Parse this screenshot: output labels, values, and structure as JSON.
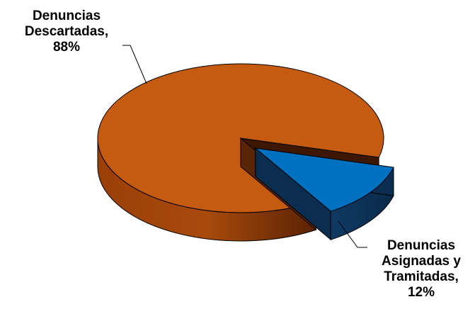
{
  "chart_data": {
    "type": "pie",
    "style": "3d-exploded",
    "title": "",
    "categories": [
      "Denuncias Descartadas",
      "Denuncias Asignadas y Tramitadas"
    ],
    "values": [
      88,
      12
    ],
    "unit": "%",
    "colors": [
      "#C55A11",
      "#0070C0"
    ],
    "exploded": [
      false,
      true
    ],
    "labels": [
      {
        "lines": [
          "Denuncias",
          "Descartadas,",
          "88%"
        ]
      },
      {
        "lines": [
          "Denuncias",
          "Asignadas y",
          "Tramitadas,",
          "12%"
        ]
      }
    ],
    "legend": "none"
  }
}
